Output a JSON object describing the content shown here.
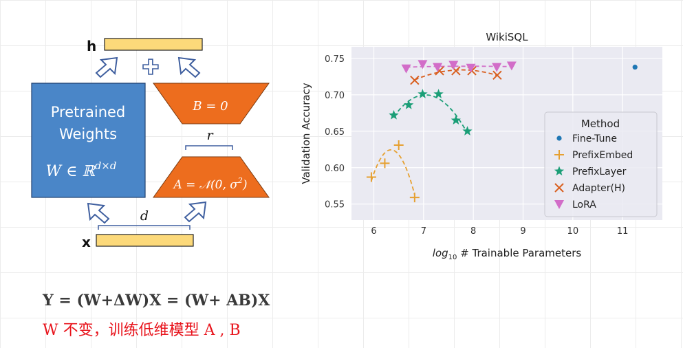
{
  "diagram": {
    "h_label": "h",
    "x_label": "x",
    "plus_symbol": "✚",
    "pretrained_line1": "Pretrained",
    "pretrained_line2": "Weights",
    "pretrained_formula": "W ∈ ℝ",
    "pretrained_formula_sup": "d×d",
    "b_label": "B = 0",
    "a_label_prefix": "A = 𝒩(0, σ",
    "a_label_sup": "2",
    "a_label_suffix": ")",
    "r_label": "r",
    "d_label": "d",
    "colors": {
      "vector_fill": "#fcd97a",
      "pretrained_fill": "#4a86c8",
      "adapter_fill": "#ed6d1e",
      "arrow_stroke": "#3f5f9f"
    }
  },
  "equations": {
    "line1": "Y = (W+ΔW)X = (W+ AB)X",
    "line2": "W 不变，训练低维模型 A , B"
  },
  "chart_data": {
    "type": "scatter",
    "title": "WikiSQL",
    "xlabel_italic": "log",
    "xlabel_sub": "10",
    "xlabel_rest": " # Trainable Parameters",
    "ylabel": "Validation Accuracy",
    "xlim": [
      5.55,
      11.8
    ],
    "ylim": [
      0.528,
      0.766
    ],
    "xticks": [
      6,
      7,
      8,
      9,
      10,
      11
    ],
    "yticks": [
      0.55,
      0.6,
      0.65,
      0.7,
      0.75
    ],
    "ytick_labels": [
      "0.55",
      "0.60",
      "0.65",
      "0.70",
      "0.75"
    ],
    "grid": true,
    "legend_title": "Method",
    "legend_position": "right",
    "series": [
      {
        "name": "Fine-Tune",
        "marker": "circle",
        "color": "#1f77b4",
        "x": [
          11.25
        ],
        "y": [
          0.738
        ],
        "fit": false
      },
      {
        "name": "PrefixEmbed",
        "marker": "plus",
        "color": "#e6a030",
        "x": [
          5.95,
          6.22,
          6.5,
          6.82
        ],
        "y": [
          0.587,
          0.606,
          0.631,
          0.559
        ],
        "fit": true
      },
      {
        "name": "PrefixLayer",
        "marker": "star",
        "color": "#1b9e77",
        "x": [
          6.4,
          6.7,
          6.98,
          7.3,
          7.65,
          7.88
        ],
        "y": [
          0.672,
          0.686,
          0.701,
          0.701,
          0.665,
          0.65
        ],
        "fit": true
      },
      {
        "name": "Adapter(H)",
        "marker": "x",
        "color": "#d95f1f",
        "x": [
          6.82,
          7.32,
          7.65,
          7.97,
          8.48
        ],
        "y": [
          0.72,
          0.733,
          0.733,
          0.733,
          0.727
        ],
        "fit": true
      },
      {
        "name": "LoRA",
        "marker": "triangle-down",
        "color": "#d26dc8",
        "x": [
          6.65,
          6.98,
          7.28,
          7.6,
          7.95,
          8.47,
          8.77
        ],
        "y": [
          0.736,
          0.742,
          0.738,
          0.741,
          0.737,
          0.738,
          0.74
        ],
        "fit": true
      }
    ]
  }
}
